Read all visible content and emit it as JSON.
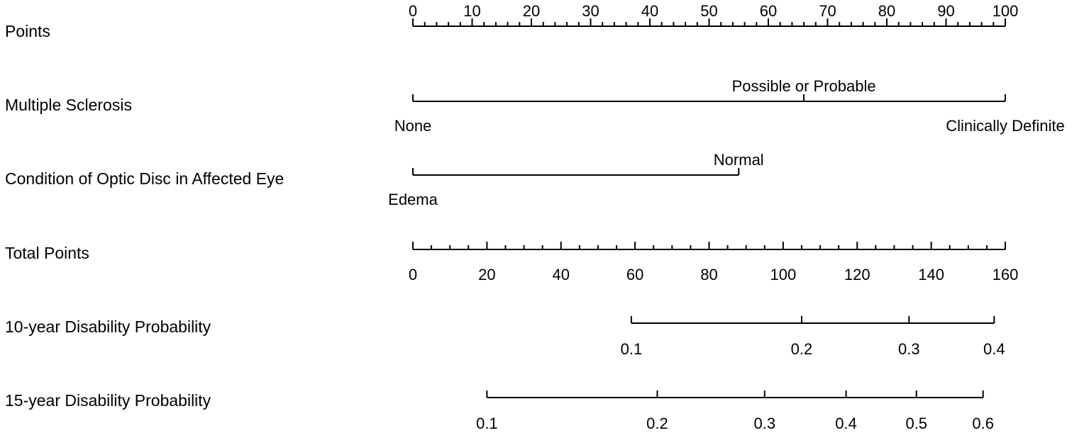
{
  "chart_data": {
    "type": "nomogram",
    "scales": [
      {
        "id": "points",
        "label": "Points",
        "kind": "linear",
        "min": 0,
        "max": 100,
        "major_ticks": [
          0,
          10,
          20,
          30,
          40,
          50,
          60,
          70,
          80,
          90,
          100
        ],
        "tick_labels": [
          "0",
          "10",
          "20",
          "30",
          "40",
          "50",
          "60",
          "70",
          "80",
          "90",
          "100"
        ],
        "minor_step": 2,
        "label_side": "above"
      },
      {
        "id": "multiple-sclerosis",
        "label": "Multiple Sclerosis",
        "kind": "categorical",
        "categories": [
          {
            "name": "None",
            "points": 0,
            "label_side": "below"
          },
          {
            "name": "Possible or Probable",
            "points": 66,
            "label_side": "above"
          },
          {
            "name": "Clinically Definite",
            "points": 100,
            "label_side": "below"
          }
        ]
      },
      {
        "id": "optic-disc",
        "label": "Condition of Optic Disc in Affected Eye",
        "kind": "categorical",
        "categories": [
          {
            "name": "Edema",
            "points": 0,
            "label_side": "below"
          },
          {
            "name": "Normal",
            "points": 55,
            "label_side": "above"
          }
        ]
      },
      {
        "id": "total-points",
        "label": "Total Points",
        "kind": "linear",
        "min": 0,
        "max": 160,
        "major_ticks": [
          0,
          20,
          40,
          60,
          80,
          100,
          120,
          140,
          160
        ],
        "tick_labels": [
          "0",
          "20",
          "40",
          "60",
          "80",
          "100",
          "120",
          "140",
          "160"
        ],
        "minor_step": 5,
        "label_side": "below"
      },
      {
        "id": "prob-10yr",
        "label": "10-year Disability Probability",
        "kind": "probability",
        "ticks": [
          {
            "value": 0.1,
            "label": "0.1",
            "total_points": 59
          },
          {
            "value": 0.2,
            "label": "0.2",
            "total_points": 105
          },
          {
            "value": 0.3,
            "label": "0.3",
            "total_points": 134
          },
          {
            "value": 0.4,
            "label": "0.4",
            "total_points": 157
          }
        ],
        "label_side": "below"
      },
      {
        "id": "prob-15yr",
        "label": "15-year Disability Probability",
        "kind": "probability",
        "ticks": [
          {
            "value": 0.1,
            "label": "0.1",
            "total_points": 20
          },
          {
            "value": 0.2,
            "label": "0.2",
            "total_points": 66
          },
          {
            "value": 0.3,
            "label": "0.3",
            "total_points": 95
          },
          {
            "value": 0.4,
            "label": "0.4",
            "total_points": 117
          },
          {
            "value": 0.5,
            "label": "0.5",
            "total_points": 136
          },
          {
            "value": 0.6,
            "label": "0.6",
            "total_points": 154
          }
        ],
        "label_side": "below"
      }
    ]
  }
}
